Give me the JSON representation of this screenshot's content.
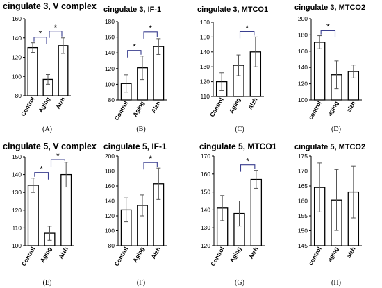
{
  "chart_data": [
    {
      "type": "bar",
      "title": "cingulate 3, V complex",
      "panel_label": "(A)",
      "categories": [
        "Control",
        "Aging",
        "Alzh"
      ],
      "values": [
        130,
        97,
        132
      ],
      "errors": [
        5,
        5,
        8
      ],
      "ylim": [
        80,
        160
      ],
      "yticks": [
        80,
        100,
        120,
        140,
        160
      ],
      "bar_color": "#ffffff",
      "significance": [
        {
          "from": 0,
          "to": 1,
          "label": "*"
        },
        {
          "from": 1,
          "to": 2,
          "label": "*"
        }
      ]
    },
    {
      "type": "bar",
      "title": "cingulate 3, IF-1",
      "panel_label": "(B)",
      "categories": [
        "Control",
        "Aging",
        "Alzh"
      ],
      "values": [
        101,
        121,
        148
      ],
      "errors": [
        11,
        15,
        10
      ],
      "ylim": [
        80,
        180
      ],
      "yticks": [
        80,
        100,
        120,
        140,
        160,
        180
      ],
      "bar_color": "#ffffff",
      "significance": [
        {
          "from": 0,
          "to": 1,
          "label": "*"
        },
        {
          "from": 1,
          "to": 2,
          "label": "*"
        }
      ]
    },
    {
      "type": "bar",
      "title": "cingulate 3, MTCO1",
      "panel_label": "(C)",
      "categories": [
        "Control",
        "Aging",
        "Alzh"
      ],
      "values": [
        120,
        131,
        140
      ],
      "errors": [
        6,
        7,
        10
      ],
      "ylim": [
        110,
        160
      ],
      "yticks": [
        110,
        120,
        130,
        140,
        150,
        160
      ],
      "bar_color": "#ffffff",
      "significance": [
        {
          "from": 1,
          "to": 2,
          "label": "*"
        }
      ]
    },
    {
      "type": "bar",
      "title": "cingulate 3, MTCO2",
      "panel_label": "(D)",
      "categories": [
        "control",
        "aging",
        "alzh"
      ],
      "values": [
        171,
        131,
        135
      ],
      "errors": [
        8,
        17,
        8
      ],
      "ylim": [
        100,
        200
      ],
      "yticks": [
        100,
        120,
        140,
        160,
        180,
        200
      ],
      "bar_color": "#ffffff",
      "significance": [
        {
          "from": 0,
          "to": 1,
          "label": "*"
        }
      ]
    },
    {
      "type": "bar",
      "title": "cingulate 5, V complex",
      "panel_label": "(E)",
      "categories": [
        "Control",
        "Aging",
        "Alzh"
      ],
      "values": [
        134,
        107,
        140
      ],
      "errors": [
        4,
        4,
        7
      ],
      "ylim": [
        100,
        150
      ],
      "yticks": [
        100,
        110,
        120,
        130,
        140,
        150
      ],
      "bar_color": "#ffffff",
      "significance": [
        {
          "from": 0,
          "to": 1,
          "label": "*"
        },
        {
          "from": 1,
          "to": 2,
          "label": "*"
        }
      ]
    },
    {
      "type": "bar",
      "title": "cingulate 5, IF-1",
      "panel_label": "(F)",
      "categories": [
        "Control",
        "Aging",
        "Alzh"
      ],
      "values": [
        128,
        134,
        163
      ],
      "errors": [
        16,
        14,
        21
      ],
      "ylim": [
        80,
        200
      ],
      "yticks": [
        80,
        100,
        120,
        140,
        160,
        180,
        200
      ],
      "bar_color": "#ffffff",
      "significance": [
        {
          "from": 1,
          "to": 2,
          "label": "*"
        }
      ]
    },
    {
      "type": "bar",
      "title": "cingulate 5, MTCO1",
      "panel_label": "(G)",
      "categories": [
        "Control",
        "Aging",
        "Alzh"
      ],
      "values": [
        141,
        138,
        157
      ],
      "errors": [
        7,
        7,
        5
      ],
      "ylim": [
        120,
        170
      ],
      "yticks": [
        120,
        130,
        140,
        150,
        160,
        170
      ],
      "bar_color": "#ffffff",
      "significance": [
        {
          "from": 1,
          "to": 2,
          "label": "*"
        }
      ]
    },
    {
      "type": "bar",
      "title": "cingulate 5, MTCO2",
      "panel_label": "(H)",
      "categories": [
        "control",
        "aging",
        "alzh"
      ],
      "values": [
        164.5,
        160.3,
        163
      ],
      "errors": [
        8.2,
        10.2,
        8.7
      ],
      "ylim": [
        145,
        175
      ],
      "yticks": [
        145,
        150,
        155,
        160,
        165,
        170,
        175
      ],
      "bar_color": "#ffffff",
      "significance": []
    }
  ],
  "colors": {
    "bar_edge": "#000000",
    "significance_bracket": "#3a3f8f",
    "background": "#ffffff"
  }
}
